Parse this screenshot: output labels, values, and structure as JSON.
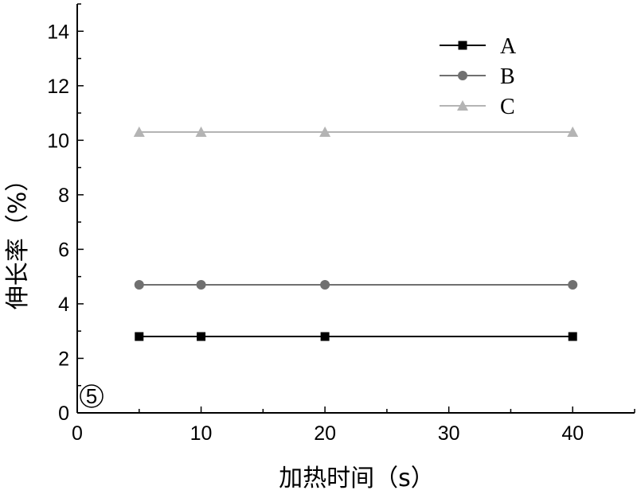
{
  "chart_data": {
    "type": "line",
    "xlabel": "加热时间（s）",
    "ylabel": "伸长率（%）",
    "xlim": [
      0,
      45
    ],
    "ylim": [
      0,
      15
    ],
    "x_ticks": [
      0,
      10,
      20,
      30,
      40
    ],
    "y_ticks": [
      0,
      2,
      4,
      6,
      8,
      10,
      12,
      14
    ],
    "grid": false,
    "legend_position": "top-right",
    "x": [
      5,
      10,
      20,
      40
    ],
    "series": [
      {
        "name": "A",
        "values": [
          2.8,
          2.8,
          2.8,
          2.8
        ],
        "color": "#000000",
        "marker": "square"
      },
      {
        "name": "B",
        "values": [
          4.7,
          4.7,
          4.7,
          4.7
        ],
        "color": "#707070",
        "marker": "circle"
      },
      {
        "name": "C",
        "values": [
          10.3,
          10.3,
          10.3,
          10.3
        ],
        "color": "#b4b4b4",
        "marker": "triangle"
      }
    ],
    "panel_label": "⑤"
  }
}
